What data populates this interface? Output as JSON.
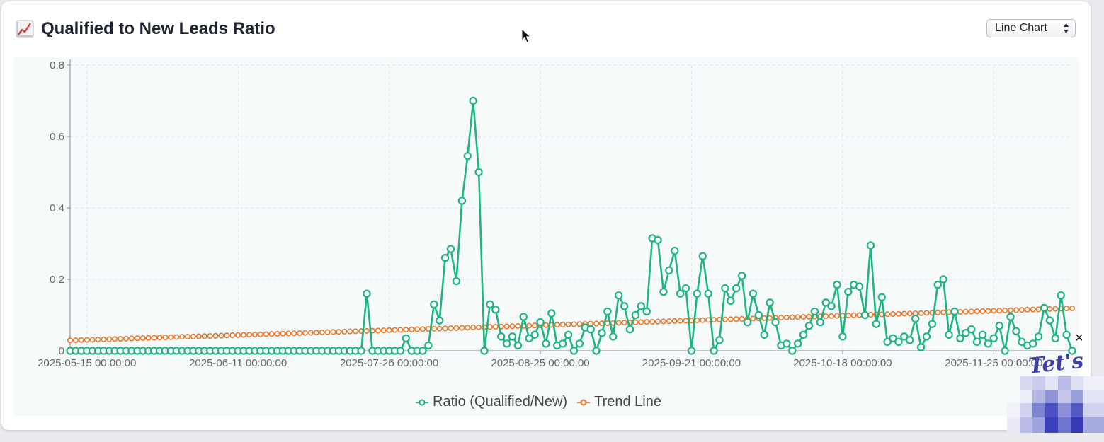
{
  "header": {
    "title": "Qualified to New Leads Ratio",
    "title_icon": "chart-increasing-icon",
    "chart_type_select": {
      "selected": "Line Chart"
    }
  },
  "overlay": {
    "close_label": "×",
    "watermark_text": "Tet's"
  },
  "colors": {
    "ratio": "#1fb583",
    "trend": "#e6782d",
    "grid": "#dde3e8",
    "axis": "#8a8f99"
  },
  "chart_data": {
    "type": "line",
    "xlabel": "",
    "ylabel": "",
    "ylim": [
      0,
      0.8
    ],
    "y_ticks": [
      "0",
      "0.2",
      "0.4",
      "0.6",
      "0.8"
    ],
    "x_tick_labels": [
      "2025-05-15 00:00:00",
      "2025-06-11 00:00:00",
      "2025-07-26 00:00:00",
      "2025-08-25 00:00:00",
      "2025-09-21 00:00:00",
      "2025-10-18 00:00:00",
      "2025-11-25 00:00:00"
    ],
    "x_tick_indices": [
      3,
      30,
      57,
      84,
      111,
      138,
      165
    ],
    "grid": true,
    "legend_position": "bottom",
    "series": [
      {
        "name": "Ratio (Qualified/New)",
        "values": [
          0,
          0,
          0,
          0,
          0,
          0,
          0,
          0,
          0,
          0,
          0,
          0,
          0,
          0,
          0,
          0,
          0,
          0,
          0,
          0,
          0,
          0,
          0,
          0,
          0,
          0,
          0,
          0,
          0,
          0,
          0,
          0,
          0,
          0,
          0,
          0,
          0,
          0,
          0,
          0,
          0,
          0,
          0,
          0,
          0,
          0,
          0,
          0,
          0,
          0,
          0,
          0,
          0,
          0.16,
          0,
          0,
          0,
          0,
          0,
          0,
          0.035,
          0,
          0,
          0,
          0.015,
          0.13,
          0.085,
          0.26,
          0.285,
          0.195,
          0.42,
          0.545,
          0.7,
          0.5,
          0,
          0.13,
          0.115,
          0.04,
          0.02,
          0.04,
          0.015,
          0.095,
          0.035,
          0.045,
          0.08,
          0.02,
          0.105,
          0.015,
          0.02,
          0.045,
          0,
          0.02,
          0.065,
          0.06,
          0,
          0.05,
          0.11,
          0.04,
          0.155,
          0.125,
          0.06,
          0.1,
          0.125,
          0.11,
          0.315,
          0.31,
          0.165,
          0.225,
          0.28,
          0.16,
          0.175,
          0,
          0.16,
          0.265,
          0.16,
          0,
          0.03,
          0.175,
          0.14,
          0.175,
          0.21,
          0.08,
          0.16,
          0.1,
          0.045,
          0.135,
          0.08,
          0.015,
          0.02,
          0,
          0.02,
          0.045,
          0.07,
          0.11,
          0.08,
          0.135,
          0.125,
          0.185,
          0.04,
          0.165,
          0.185,
          0.18,
          0.1,
          0.295,
          0.075,
          0.15,
          0.025,
          0.035,
          0.025,
          0.04,
          0.03,
          0.09,
          0.01,
          0.04,
          0.075,
          0.185,
          0.2,
          0.045,
          0.11,
          0.035,
          0.05,
          0.06,
          0.025,
          0.045,
          0.02,
          0.035,
          0.07,
          0,
          0.095,
          0.055,
          0.025,
          0.015,
          0.02,
          0.04,
          0.12,
          0.085,
          0.035,
          0.155,
          0.045,
          0
        ]
      },
      {
        "name": "Trend Line",
        "start": 0.029,
        "end": 0.119
      }
    ]
  }
}
